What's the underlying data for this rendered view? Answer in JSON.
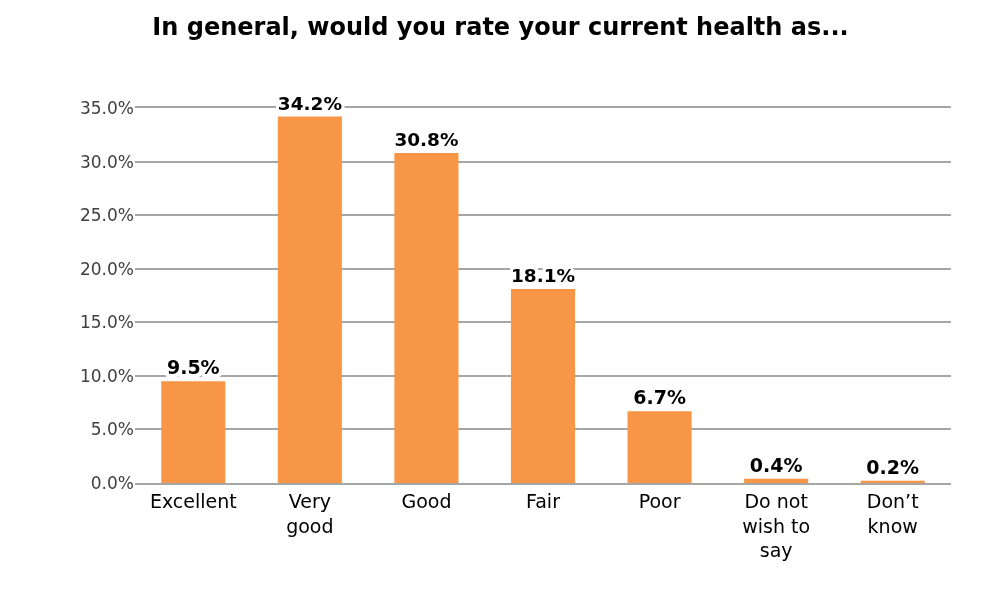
{
  "chart_data": {
    "type": "bar",
    "title": "In general, would you rate your current health as...",
    "categories": [
      "Excellent",
      "Very good",
      "Good",
      "Fair",
      "Poor",
      "Do not wish to say",
      "Don’t know"
    ],
    "values": [
      9.5,
      34.2,
      30.8,
      18.1,
      6.7,
      0.4,
      0.2
    ],
    "value_labels": [
      "9.5%",
      "34.2%",
      "30.8%",
      "18.1%",
      "6.7%",
      "0.4%",
      "0.2%"
    ],
    "color": "#f79646",
    "ylim": [
      0,
      35
    ],
    "yticks": [
      {
        "value": 0,
        "label": "0.0%"
      },
      {
        "value": 5,
        "label": "5.0%"
      },
      {
        "value": 10,
        "label": "10.0%"
      },
      {
        "value": 15,
        "label": "15.0%"
      },
      {
        "value": 20,
        "label": "20.0%"
      },
      {
        "value": 25,
        "label": "25.0%"
      },
      {
        "value": 30,
        "label": "30.0%"
      },
      {
        "value": 35,
        "label": "35.0%"
      }
    ],
    "grid": "y"
  }
}
